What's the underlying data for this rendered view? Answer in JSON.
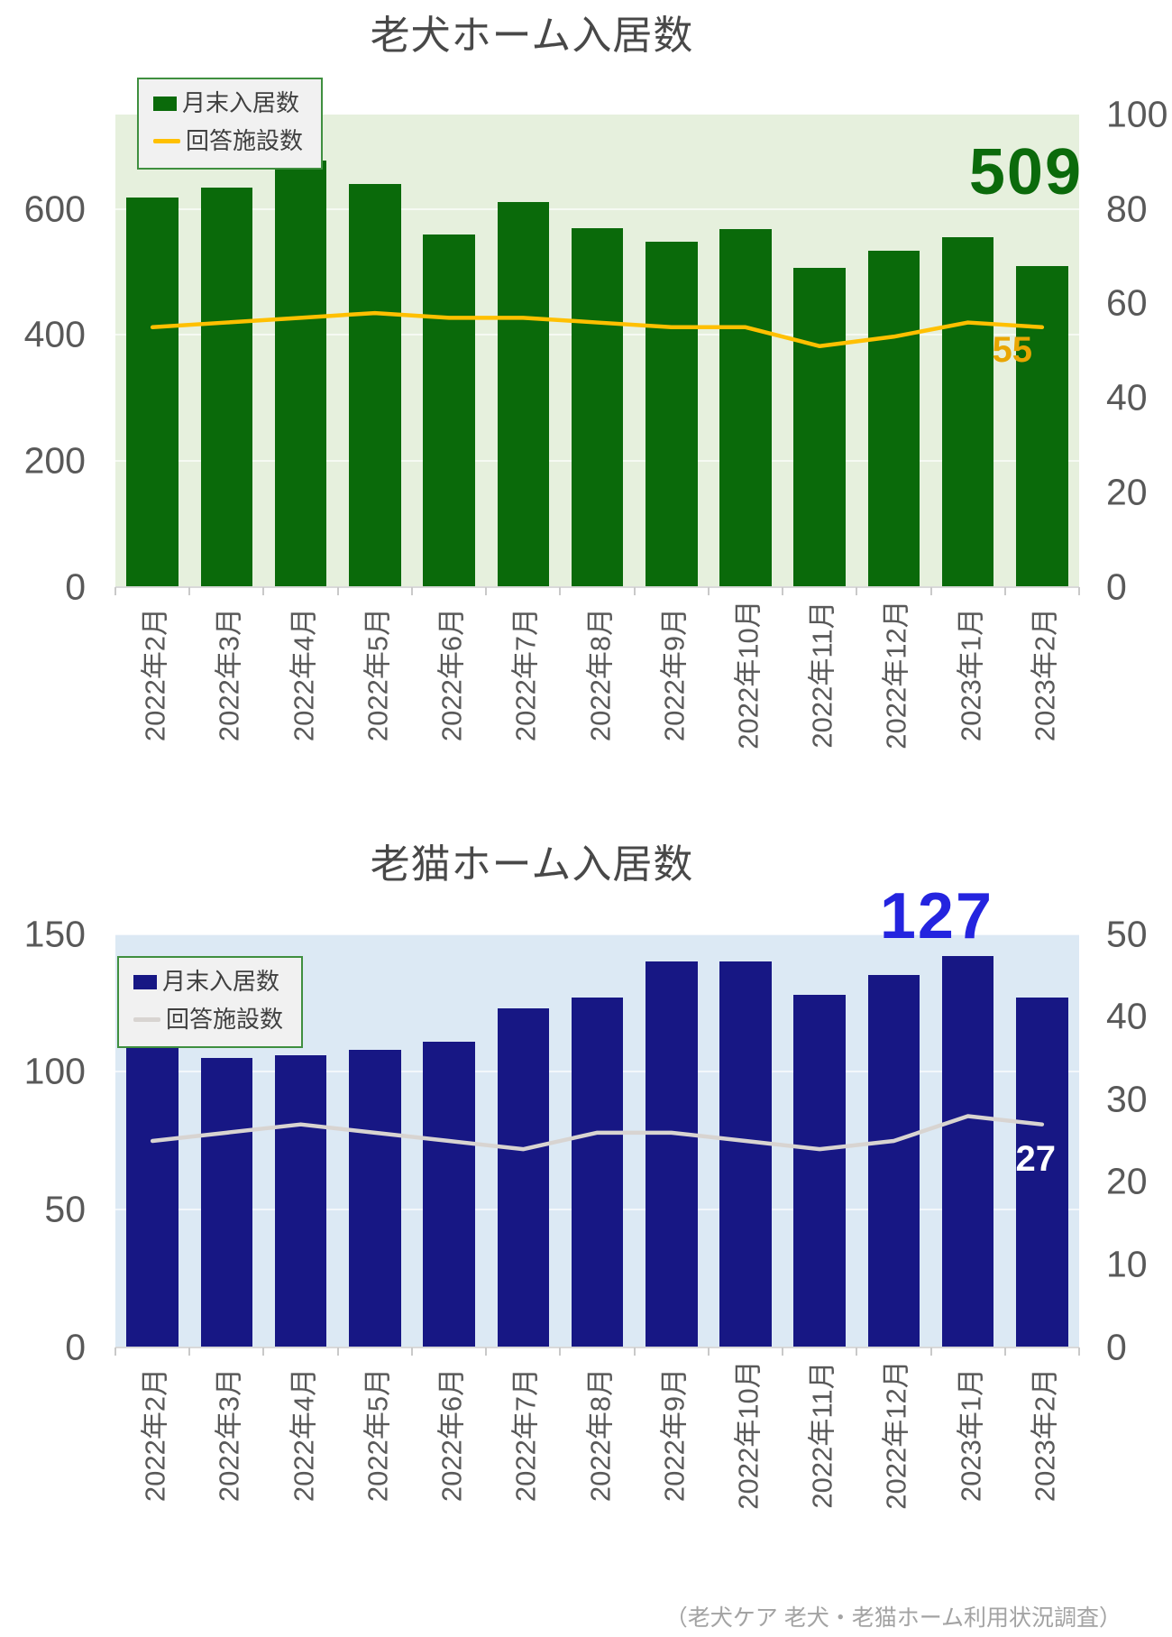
{
  "chart_data": [
    {
      "id": "dog-home",
      "type": "bar+line",
      "title": "老犬ホーム入居数",
      "categories": [
        "2022年2月",
        "2022年3月",
        "2022年4月",
        "2022年5月",
        "2022年6月",
        "2022年7月",
        "2022年8月",
        "2022年9月",
        "2022年10月",
        "2022年11月",
        "2022年12月",
        "2023年1月",
        "2023年2月"
      ],
      "series": [
        {
          "name": "月末入居数",
          "type": "bar",
          "axis": "left",
          "values": [
            618,
            634,
            677,
            639,
            560,
            611,
            570,
            548,
            568,
            506,
            533,
            555,
            509
          ]
        },
        {
          "name": "回答施設数",
          "type": "line",
          "axis": "right",
          "values": [
            55,
            56,
            57,
            58,
            57,
            57,
            56,
            55,
            55,
            51,
            53,
            56,
            55
          ]
        }
      ],
      "left_axis": {
        "ticks": [
          0,
          200,
          400,
          600
        ],
        "max": 750
      },
      "right_axis": {
        "ticks": [
          0,
          20,
          40,
          60,
          80,
          100
        ],
        "max": 100
      },
      "gridlines": [
        200,
        400,
        600
      ],
      "legend_position": "top-left",
      "end_labels": {
        "bar": "509",
        "line": "55"
      },
      "colors": {
        "bar": "#0A6A0A",
        "line": "#FFC000",
        "plot_bg": "#E6F0DD",
        "bar_end_label": "#0B6A0B",
        "line_end_label": "#E9A602"
      }
    },
    {
      "id": "cat-home",
      "type": "bar+line",
      "title": "老猫ホーム入居数",
      "categories": [
        "2022年2月",
        "2022年3月",
        "2022年4月",
        "2022年5月",
        "2022年6月",
        "2022年7月",
        "2022年8月",
        "2022年9月",
        "2022年10月",
        "2022年11月",
        "2022年12月",
        "2023年1月",
        "2023年2月"
      ],
      "series": [
        {
          "name": "月末入居数",
          "type": "bar",
          "axis": "left",
          "values": [
            109,
            105,
            106,
            108,
            111,
            123,
            127,
            140,
            140,
            128,
            135,
            142,
            127
          ]
        },
        {
          "name": "回答施設数",
          "type": "line",
          "axis": "right",
          "values": [
            25,
            26,
            27,
            26,
            25,
            24,
            26,
            26,
            25,
            24,
            25,
            28,
            27
          ]
        }
      ],
      "left_axis": {
        "ticks": [
          0,
          50,
          100,
          150
        ],
        "max": 150
      },
      "right_axis": {
        "ticks": [
          0,
          10,
          20,
          30,
          40,
          50
        ],
        "max": 50
      },
      "gridlines": [
        50,
        100,
        150
      ],
      "legend_position": "top-left",
      "end_labels": {
        "bar": "127",
        "line": "27"
      },
      "colors": {
        "bar": "#171784",
        "line": "#D8D4D1",
        "plot_bg": "#DCE9F4",
        "bar_end_label": "#2424DF",
        "line_end_label": "#FFFFFF"
      }
    }
  ],
  "footer": "（老犬ケア 老犬・老猫ホーム利用状況調査）"
}
